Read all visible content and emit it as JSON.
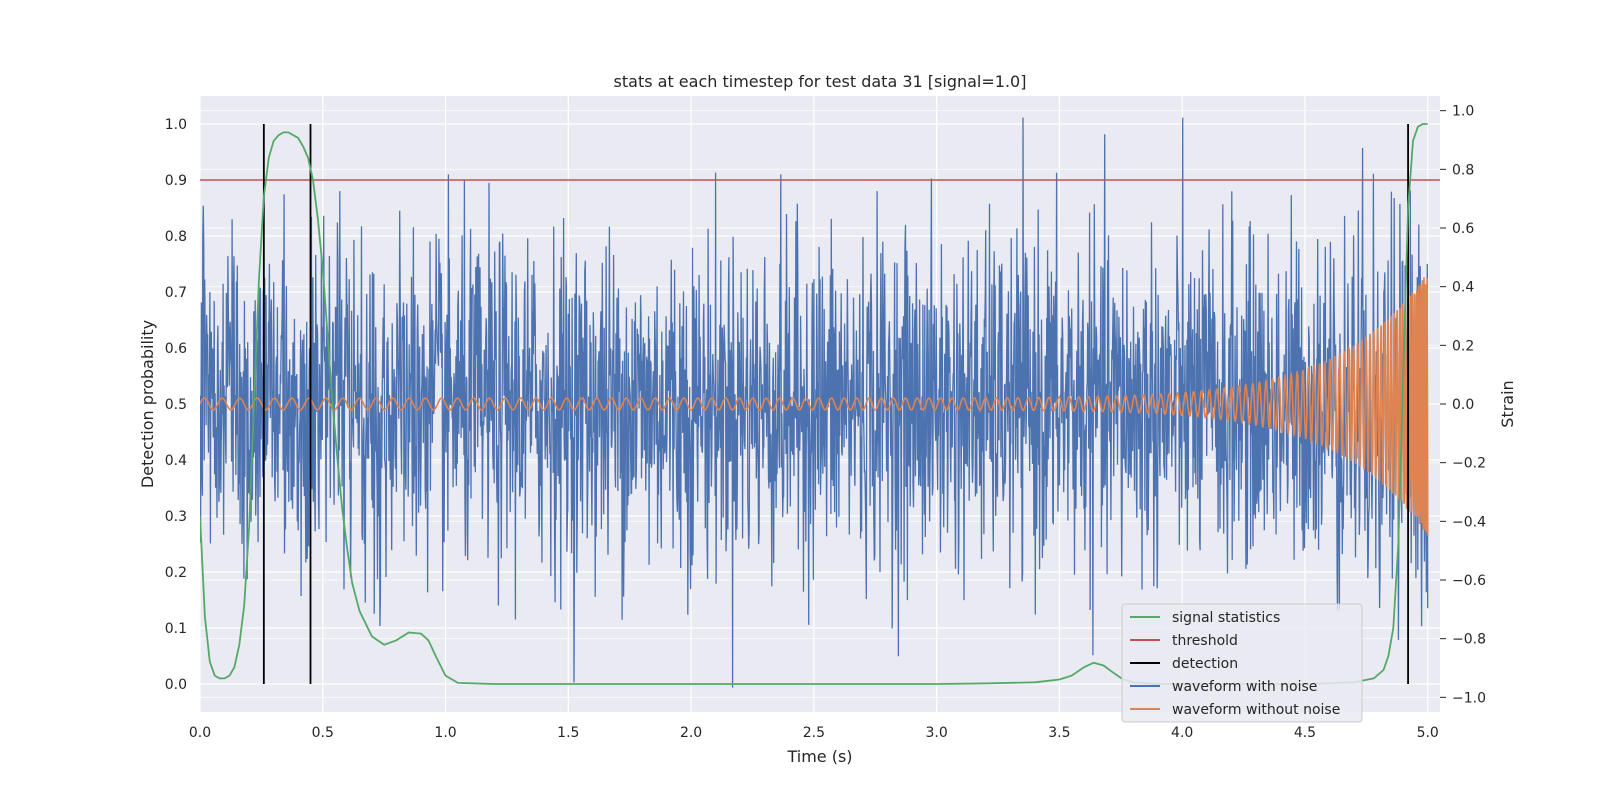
{
  "chart_data": {
    "type": "line",
    "title": "stats at each timestep for test data 31 [signal=1.0]",
    "xlabel": "Time (s)",
    "ylabel_left": "Detection probability",
    "ylabel_right": "Strain",
    "xlim": [
      0.0,
      5.05
    ],
    "ylim_left": [
      -0.05,
      1.05
    ],
    "ylim_right": [
      -1.05,
      1.05
    ],
    "x_ticks": [
      "0.0",
      "0.5",
      "1.0",
      "1.5",
      "2.0",
      "2.5",
      "3.0",
      "3.5",
      "4.0",
      "4.5",
      "5.0"
    ],
    "y_left_ticks": [
      "0.0",
      "0.1",
      "0.2",
      "0.3",
      "0.4",
      "0.5",
      "0.6",
      "0.7",
      "0.8",
      "0.9",
      "1.0"
    ],
    "y_right_ticks": [
      "−1.0",
      "−0.8",
      "−0.6",
      "−0.4",
      "−0.2",
      "0.0",
      "0.2",
      "0.4",
      "0.6",
      "0.8",
      "1.0"
    ],
    "grid": true,
    "legend_position": "lower-right",
    "threshold": 0.9,
    "detections": [
      0.26,
      0.45,
      4.92
    ],
    "series": [
      {
        "name": "signal statistics",
        "axis": "left",
        "color": "#55a868",
        "x": [
          0.0,
          0.02,
          0.04,
          0.06,
          0.08,
          0.1,
          0.12,
          0.14,
          0.16,
          0.18,
          0.2,
          0.22,
          0.24,
          0.26,
          0.28,
          0.3,
          0.32,
          0.34,
          0.36,
          0.38,
          0.4,
          0.42,
          0.44,
          0.46,
          0.48,
          0.5,
          0.52,
          0.54,
          0.56,
          0.58,
          0.6,
          0.62,
          0.65,
          0.7,
          0.75,
          0.8,
          0.85,
          0.9,
          0.93,
          0.96,
          1.0,
          1.05,
          1.2,
          1.5,
          2.0,
          2.5,
          3.0,
          3.2,
          3.4,
          3.5,
          3.55,
          3.6,
          3.64,
          3.68,
          3.72,
          3.76,
          3.8,
          3.9,
          4.0,
          4.2,
          4.5,
          4.7,
          4.78,
          4.82,
          4.84,
          4.86,
          4.88,
          4.9,
          4.92,
          4.94,
          4.96,
          4.98,
          5.0
        ],
        "y": [
          0.3,
          0.12,
          0.04,
          0.015,
          0.01,
          0.01,
          0.015,
          0.03,
          0.07,
          0.14,
          0.28,
          0.5,
          0.72,
          0.87,
          0.94,
          0.97,
          0.98,
          0.985,
          0.985,
          0.98,
          0.975,
          0.96,
          0.94,
          0.9,
          0.83,
          0.74,
          0.62,
          0.5,
          0.4,
          0.31,
          0.24,
          0.18,
          0.13,
          0.085,
          0.07,
          0.078,
          0.092,
          0.09,
          0.078,
          0.05,
          0.015,
          0.002,
          0.0,
          0.0,
          0.0,
          0.0,
          0.0,
          0.001,
          0.003,
          0.008,
          0.015,
          0.03,
          0.038,
          0.033,
          0.02,
          0.008,
          0.003,
          0.0,
          0.0,
          0.0,
          0.0,
          0.003,
          0.01,
          0.025,
          0.05,
          0.1,
          0.25,
          0.55,
          0.85,
          0.97,
          0.995,
          1.0,
          1.0
        ]
      },
      {
        "name": "threshold",
        "axis": "left",
        "color": "#c44e52"
      },
      {
        "name": "detection",
        "axis": "left",
        "color": "#000000"
      },
      {
        "name": "waveform with noise",
        "axis": "right",
        "color": "#4c72b0",
        "noise_amplitude": 1.0
      },
      {
        "name": "waveform without noise",
        "axis": "right",
        "color": "#dd8452",
        "chirp_amplitude_start": 0.02,
        "chirp_amplitude_end": 0.45
      }
    ]
  }
}
